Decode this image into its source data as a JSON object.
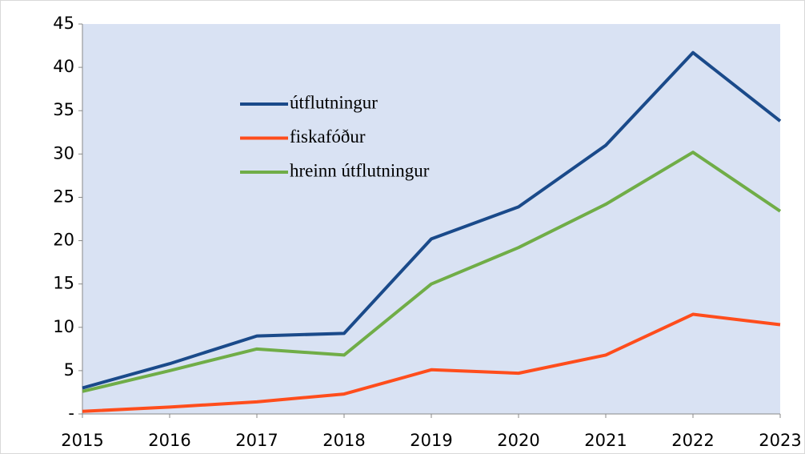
{
  "chart_data": {
    "type": "line",
    "x": [
      2015,
      2016,
      2017,
      2018,
      2019,
      2020,
      2021,
      2022,
      2023
    ],
    "xlim": [
      2015,
      2023
    ],
    "xticks": [
      2015,
      2016,
      2017,
      2018,
      2019,
      2020,
      2021,
      2022,
      2023
    ],
    "ylim": [
      0,
      45
    ],
    "yticks": [
      {
        "value": 0,
        "label": "-"
      },
      5,
      10,
      15,
      20,
      25,
      30,
      35,
      40,
      45
    ],
    "grid": false,
    "legend": "upper-left",
    "series": [
      {
        "name": "útflutningur",
        "color": "#1a4a8a",
        "values": [
          3.0,
          5.8,
          9.0,
          9.3,
          20.2,
          23.9,
          31.0,
          41.7,
          33.8
        ]
      },
      {
        "name": "fiskafóður",
        "color": "#ff4d1c",
        "values": [
          0.3,
          0.8,
          1.4,
          2.3,
          5.1,
          4.7,
          6.8,
          11.5,
          10.3
        ]
      },
      {
        "name": "hreinn útflutningur",
        "color": "#70ad47",
        "values": [
          2.6,
          5.0,
          7.5,
          6.8,
          15.0,
          19.2,
          24.2,
          30.2,
          23.4
        ]
      }
    ]
  }
}
